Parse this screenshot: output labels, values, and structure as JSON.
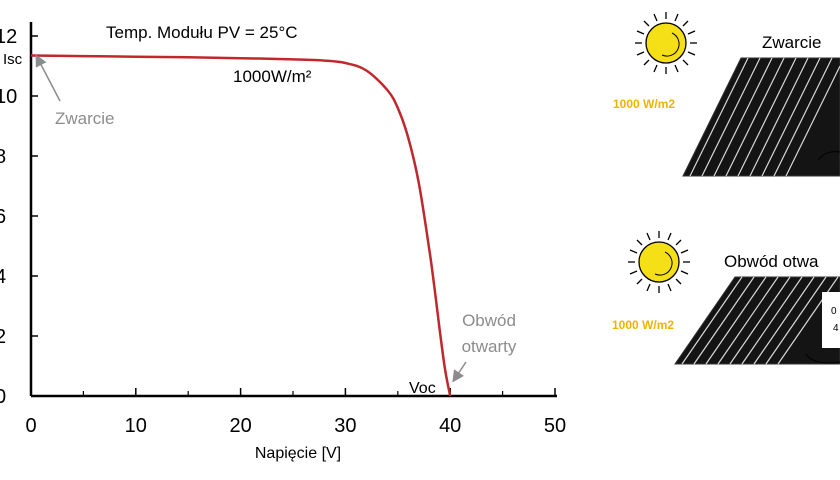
{
  "chart_data": {
    "type": "line",
    "title": "Temp. Modułu PV = 25°C",
    "xlabel": "Napięcie [V]",
    "ylabel": "",
    "xlim": [
      0,
      50
    ],
    "ylim": [
      0,
      12
    ],
    "x_ticks": [
      "0",
      "10",
      "20",
      "30",
      "40",
      "50"
    ],
    "y_ticks": [
      "0",
      "2",
      "4",
      "6",
      "8",
      "10",
      "12"
    ],
    "series": [
      {
        "name": "1000W/m²",
        "color": "#c0282d",
        "x": [
          0,
          5,
          10,
          15,
          20,
          25,
          28,
          30,
          32,
          34,
          35,
          36,
          37,
          38,
          38.5,
          39,
          39.5,
          40
        ],
        "y": [
          11.35,
          11.33,
          11.31,
          11.29,
          11.26,
          11.22,
          11.18,
          11.1,
          10.85,
          10.2,
          9.6,
          8.6,
          7.1,
          4.9,
          3.6,
          2.2,
          0.9,
          0
        ]
      }
    ],
    "annotations": [
      {
        "text": "Isc",
        "x": 0,
        "y": 11.35
      },
      {
        "text": "Zwarcie",
        "x": 0,
        "y": 11.35,
        "color": "#8c8c8c"
      },
      {
        "text": "Voc",
        "x": 40,
        "y": 0
      },
      {
        "text": "Obwód",
        "x": 40,
        "y": 0,
        "color": "#8c8c8c"
      },
      {
        "text": "otwarty",
        "x": 40,
        "y": 0,
        "color": "#8c8c8c"
      }
    ]
  },
  "panels": [
    {
      "label": "Zwarcie",
      "irradiance": "1000 W/m2",
      "note_line1": "",
      "note_line2": ""
    },
    {
      "label": "Obwód otwa",
      "irradiance": "1000 W/m2",
      "note_line1": "0",
      "note_line2": "4"
    }
  ],
  "colors": {
    "sun": "#f5df16",
    "irradiance": "#f0b400",
    "panel": "#141414",
    "curve": "#c0282d",
    "annotation": "#8c8c8c"
  }
}
